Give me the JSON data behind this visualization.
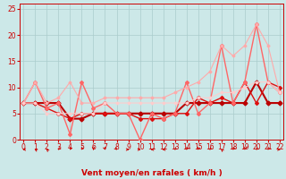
{
  "x": [
    0,
    1,
    2,
    3,
    4,
    5,
    6,
    7,
    8,
    9,
    10,
    11,
    12,
    13,
    14,
    15,
    16,
    17,
    18,
    19,
    20,
    21,
    22
  ],
  "series": [
    {
      "label": "line1_dark_red_thick",
      "color": "#bb0000",
      "lw": 1.5,
      "marker": "D",
      "ms": 2.5,
      "y": [
        7,
        7,
        7,
        7,
        4,
        4,
        5,
        5,
        5,
        5,
        5,
        5,
        5,
        5,
        7,
        7,
        7,
        7,
        7,
        7,
        11,
        7,
        7
      ]
    },
    {
      "label": "line2_dark_red",
      "color": "#dd1111",
      "lw": 1.0,
      "marker": "D",
      "ms": 2.0,
      "y": [
        7,
        7,
        6,
        5,
        4,
        5,
        5,
        5,
        5,
        5,
        4,
        4,
        4,
        5,
        5,
        8,
        7,
        8,
        7,
        11,
        7,
        11,
        10
      ]
    },
    {
      "label": "line3_pink_oscillating",
      "color": "#ff6666",
      "lw": 1.0,
      "marker": "D",
      "ms": 2.0,
      "y": [
        7,
        11,
        6,
        7,
        1,
        11,
        6,
        7,
        5,
        5,
        0,
        5,
        4,
        5,
        11,
        5,
        7,
        18,
        7,
        11,
        22,
        11,
        9
      ]
    },
    {
      "label": "line4_light_pink_top",
      "color": "#ffaaaa",
      "lw": 0.8,
      "marker": "D",
      "ms": 1.5,
      "y": [
        7,
        11,
        7,
        8,
        11,
        7,
        7,
        8,
        8,
        8,
        8,
        8,
        8,
        9,
        10,
        11,
        13,
        18,
        16,
        18,
        22,
        18,
        9
      ]
    },
    {
      "label": "line5_light_pink_lower",
      "color": "#ffcccc",
      "lw": 0.8,
      "marker": "D",
      "ms": 1.5,
      "y": [
        7,
        7,
        5,
        5,
        5,
        5,
        5,
        7,
        7,
        7,
        7,
        7,
        7,
        7,
        7,
        8,
        8,
        9,
        9,
        10,
        11,
        11,
        9
      ]
    }
  ],
  "xlim": [
    -0.3,
    22.3
  ],
  "ylim": [
    0,
    26
  ],
  "yticks": [
    0,
    5,
    10,
    15,
    20,
    25
  ],
  "xticks": [
    0,
    1,
    2,
    3,
    4,
    5,
    6,
    7,
    8,
    9,
    10,
    11,
    12,
    13,
    14,
    15,
    16,
    17,
    18,
    19,
    20,
    21,
    22
  ],
  "xlabel": "Vent moyen/en rafales ( km/h )",
  "xlabel_color": "#cc0000",
  "xlabel_fontsize": 6.5,
  "tick_color": "#cc0000",
  "tick_fontsize": 5.5,
  "background_color": "#cce8e8",
  "grid_color": "#aacccc",
  "arrow_angles": [
    270,
    300,
    315,
    225,
    210,
    200,
    180,
    160,
    135,
    90,
    90,
    270,
    270,
    225,
    210,
    200,
    225,
    315,
    210,
    200,
    225,
    210,
    90
  ]
}
